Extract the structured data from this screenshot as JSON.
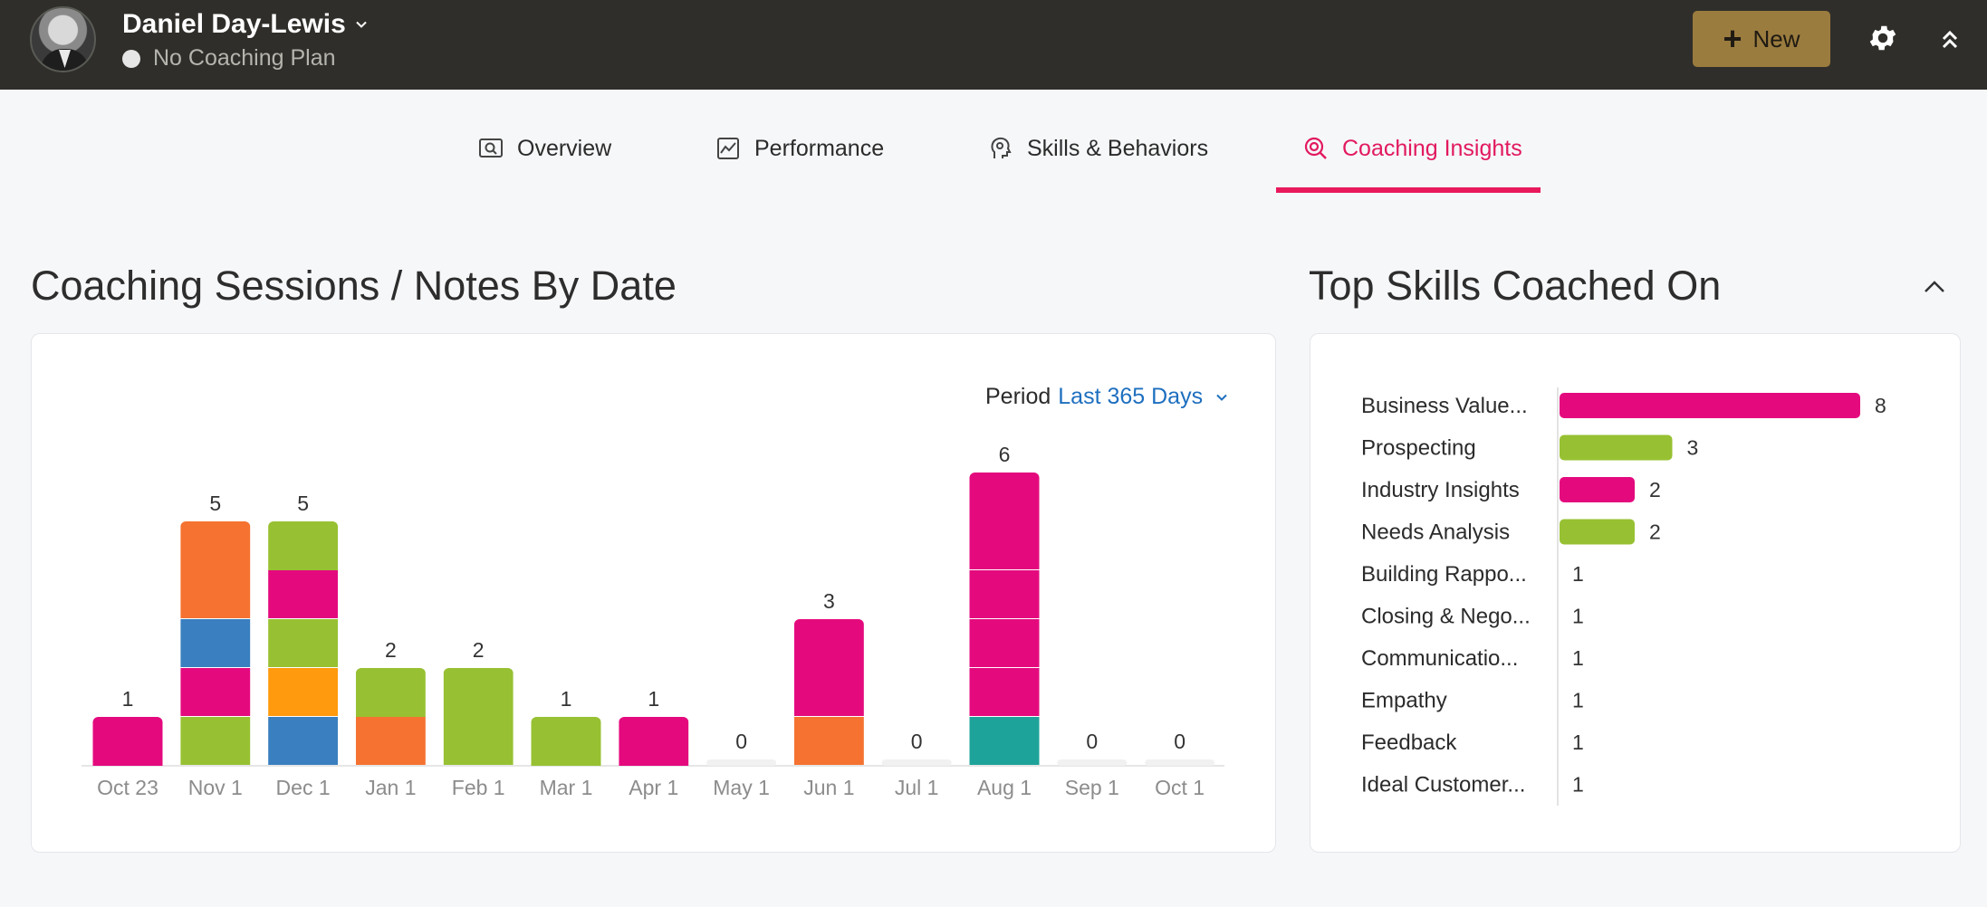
{
  "header": {
    "user_name": "Daniel Day-Lewis",
    "plan_status": "No Coaching Plan",
    "new_button_label": "New"
  },
  "tabs": [
    {
      "label": "Overview",
      "icon": "search-doc-icon",
      "active": false
    },
    {
      "label": "Performance",
      "icon": "chart-icon",
      "active": false
    },
    {
      "label": "Skills & Behaviors",
      "icon": "head-gear-icon",
      "active": false
    },
    {
      "label": "Coaching Insights",
      "icon": "target-search-icon",
      "active": true
    }
  ],
  "accent_color": "#e8195c",
  "sessions_panel": {
    "title": "Coaching Sessions / Notes By Date",
    "period_label": "Period",
    "period_value": "Last 365 Days"
  },
  "skills_panel": {
    "title": "Top Skills Coached On"
  },
  "chart_data": [
    {
      "type": "bar",
      "stacked": true,
      "categories": [
        "Oct 23",
        "Nov 1",
        "Dec 1",
        "Jan 1",
        "Feb 1",
        "Mar 1",
        "Apr 1",
        "May 1",
        "Jun 1",
        "Jul 1",
        "Aug 1",
        "Sep 1",
        "Oct 1"
      ],
      "totals": [
        1,
        5,
        5,
        2,
        2,
        1,
        1,
        0,
        3,
        0,
        6,
        0,
        0
      ],
      "segments": [
        [
          "#e40a7e"
        ],
        [
          "#97c132",
          "#e40a7e",
          "#3a7fbf",
          "#f57230",
          "#f57230"
        ],
        [
          "#3a7fbf",
          "#ff9a0e",
          "#97c132",
          "#e40a7e",
          "#97c132"
        ],
        [
          "#f57230",
          "#97c132"
        ],
        [
          "#97c132",
          "#97c132"
        ],
        [
          "#97c132"
        ],
        [
          "#e40a7e"
        ],
        [],
        [
          "#f57230",
          "#e40a7e",
          "#e40a7e"
        ],
        [],
        [
          "#1ea39a",
          "#e40a7e",
          "#e40a7e",
          "#e40a7e",
          "#e40a7e",
          "#e40a7e"
        ],
        [],
        []
      ],
      "ylim": [
        0,
        6
      ]
    },
    {
      "type": "bar",
      "orientation": "horizontal",
      "categories": [
        "Business Value...",
        "Prospecting",
        "Industry Insights",
        "Needs Analysis",
        "Building Rappo...",
        "Closing & Nego...",
        "Communicatio...",
        "Empathy",
        "Feedback",
        "Ideal Customer..."
      ],
      "values": [
        8,
        3,
        2,
        2,
        1,
        1,
        1,
        1,
        1,
        1
      ],
      "colors": [
        "#e40a7e",
        "#97c132",
        "#e40a7e",
        "#97c132",
        "",
        "",
        "",
        "",
        "",
        ""
      ]
    }
  ]
}
